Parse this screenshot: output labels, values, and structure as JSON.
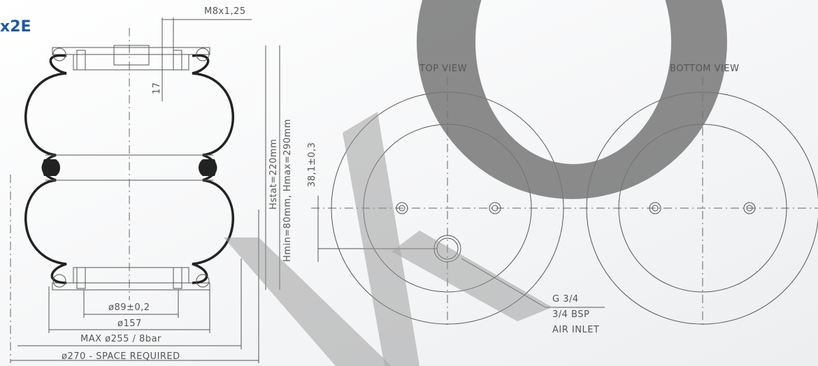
{
  "header": {
    "title": "x2E"
  },
  "side_view": {
    "thread": "M8x1,25",
    "thread_depth": "17",
    "h_stat": "Hstat=220mm",
    "h_range": "Hmin=80mm, Hmax=290mm",
    "d_inner": "ø89±0,2",
    "d_plate": "ø157",
    "d_max": "MAX ø255 / 8bar",
    "d_space": "ø270 - SPACE REQUIRED"
  },
  "top_view": {
    "title": "TOP VIEW",
    "offset": "38,1±0,3",
    "inlet_thread": "G 3/4",
    "inlet_bsp": "3/4 BSP",
    "inlet_label": "AIR INLET"
  },
  "bottom_view": {
    "title": "BOTTOM VIEW"
  }
}
